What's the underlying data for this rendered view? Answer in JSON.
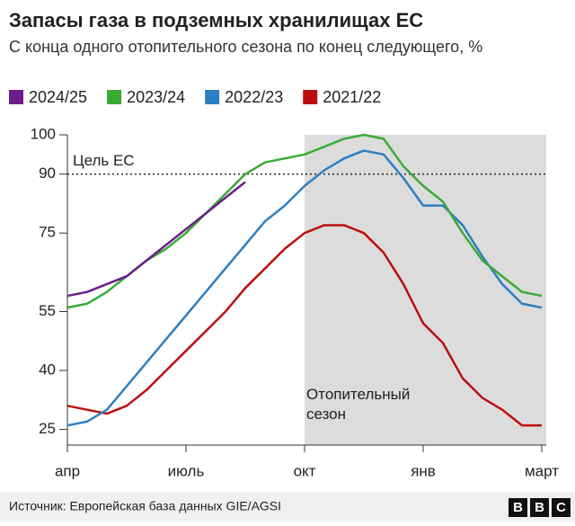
{
  "chart_data": {
    "type": "line",
    "title": "Запасы газа в подземных хранилищах ЕС",
    "subtitle": "С конца одного отопительного сезона по конец следующего, %",
    "categories": [
      "апр",
      null,
      null,
      null,
      null,
      null,
      "июль",
      null,
      null,
      null,
      null,
      null,
      "окт",
      null,
      null,
      null,
      null,
      null,
      "янв",
      null,
      null,
      null,
      null,
      null,
      "март"
    ],
    "series": [
      {
        "name": "2024/25",
        "color": "#6e1e8c",
        "values": [
          59,
          60,
          62,
          64,
          68,
          72,
          76,
          80,
          84,
          88,
          null,
          null,
          null,
          null,
          null,
          null,
          null,
          null,
          null,
          null,
          null,
          null,
          null,
          null,
          null
        ]
      },
      {
        "name": "2023/24",
        "color": "#3aaa35",
        "values": [
          56,
          57,
          60,
          64,
          68,
          71,
          75,
          80,
          85,
          90,
          93,
          94,
          95,
          97,
          99,
          100,
          99,
          92,
          87,
          83,
          75,
          68,
          64,
          60,
          59
        ]
      },
      {
        "name": "2022/23",
        "color": "#2d7fc1",
        "values": [
          26,
          27,
          30,
          36,
          42,
          48,
          54,
          60,
          66,
          72,
          78,
          82,
          87,
          91,
          94,
          96,
          95,
          89,
          82,
          82,
          77,
          69,
          62,
          57,
          56
        ]
      },
      {
        "name": "2021/22",
        "color": "#bb0f0f",
        "values": [
          31,
          30,
          29,
          31,
          35,
          40,
          45,
          50,
          55,
          61,
          66,
          71,
          75,
          77,
          77,
          75,
          70,
          62,
          52,
          47,
          38,
          33,
          30,
          26,
          26
        ]
      }
    ],
    "ylim": [
      21,
      100
    ],
    "yticks": [
      25,
      40,
      55,
      75,
      90,
      100
    ],
    "grid": false,
    "target": {
      "label": "Цель ЕС",
      "value": 90
    },
    "shade_label": "Отопительный сезон",
    "source": "Источник: Европейская база данных GIE/AGSI",
    "logo": [
      "B",
      "B",
      "C"
    ]
  }
}
